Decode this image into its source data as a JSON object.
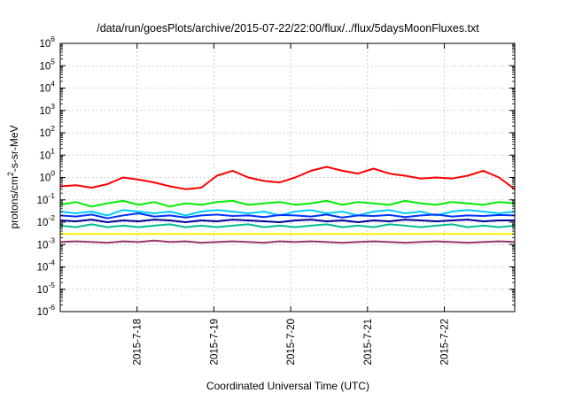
{
  "chart_data": {
    "type": "line",
    "title": "/data/run/goesPlots/archive/2015-07-22/22:00/flux/../flux/5daysMoonFluxes.txt",
    "xlabel": "Coordinated Universal Time (UTC)",
    "ylabel": {
      "base": "protons/cm",
      "sup": "2",
      "rest": "-s-sr-MeV"
    },
    "x_start": "2015-07-17 00:00",
    "x_end": "2015-07-22 22:00",
    "x_ticks": [
      "2015-7-18",
      "2015-7-19",
      "2015-7-20",
      "2015-7-21",
      "2015-7-22"
    ],
    "yscale": "log",
    "ylim": [
      1e-06,
      1000000.0
    ],
    "y_ticks": [
      {
        "base": "10",
        "exp": "-6"
      },
      {
        "base": "10",
        "exp": "-5"
      },
      {
        "base": "10",
        "exp": "-4"
      },
      {
        "base": "10",
        "exp": "-3"
      },
      {
        "base": "10",
        "exp": "-2"
      },
      {
        "base": "10",
        "exp": "-1"
      },
      {
        "base": "10",
        "exp": "0"
      },
      {
        "base": "10",
        "exp": "1"
      },
      {
        "base": "10",
        "exp": "2"
      },
      {
        "base": "10",
        "exp": "3"
      },
      {
        "base": "10",
        "exp": "4"
      },
      {
        "base": "10",
        "exp": "5"
      },
      {
        "base": "10",
        "exp": "6"
      }
    ],
    "grid": true,
    "legend": "none",
    "series": [
      {
        "color": "#ff0000",
        "values": [
          0.4,
          0.45,
          0.35,
          0.5,
          1.0,
          0.8,
          0.6,
          0.4,
          0.3,
          0.35,
          1.2,
          2.0,
          1.0,
          0.7,
          0.6,
          1.0,
          2.0,
          3.0,
          2.0,
          1.5,
          2.5,
          1.5,
          1.2,
          0.9,
          1.0,
          0.9,
          1.2,
          2.0,
          1.0,
          0.3
        ]
      },
      {
        "color": "#00ee00",
        "values": [
          0.06,
          0.08,
          0.05,
          0.07,
          0.09,
          0.06,
          0.08,
          0.05,
          0.07,
          0.06,
          0.08,
          0.09,
          0.06,
          0.07,
          0.08,
          0.06,
          0.07,
          0.09,
          0.06,
          0.08,
          0.07,
          0.06,
          0.09,
          0.07,
          0.06,
          0.08,
          0.07,
          0.06,
          0.08,
          0.07
        ]
      },
      {
        "color": "#00ccff",
        "values": [
          0.03,
          0.025,
          0.03,
          0.02,
          0.035,
          0.03,
          0.025,
          0.03,
          0.02,
          0.03,
          0.035,
          0.03,
          0.025,
          0.03,
          0.02,
          0.03,
          0.035,
          0.025,
          0.03,
          0.02,
          0.03,
          0.035,
          0.025,
          0.03,
          0.02,
          0.03,
          0.035,
          0.03,
          0.025,
          0.03
        ]
      },
      {
        "color": "#0033ff",
        "values": [
          0.02,
          0.018,
          0.022,
          0.015,
          0.02,
          0.025,
          0.018,
          0.02,
          0.016,
          0.02,
          0.022,
          0.019,
          0.02,
          0.017,
          0.021,
          0.02,
          0.018,
          0.022,
          0.016,
          0.02,
          0.019,
          0.021,
          0.017,
          0.02,
          0.022,
          0.018,
          0.02,
          0.019,
          0.021,
          0.02
        ]
      },
      {
        "color": "#000099",
        "values": [
          0.012,
          0.011,
          0.013,
          0.01,
          0.012,
          0.011,
          0.013,
          0.012,
          0.01,
          0.012,
          0.011,
          0.013,
          0.012,
          0.011,
          0.01,
          0.012,
          0.013,
          0.011,
          0.012,
          0.01,
          0.012,
          0.011,
          0.013,
          0.012,
          0.011,
          0.012,
          0.013,
          0.011,
          0.012,
          0.012
        ]
      },
      {
        "color": "#00bb99",
        "values": [
          0.007,
          0.006,
          0.008,
          0.006,
          0.007,
          0.006,
          0.007,
          0.008,
          0.006,
          0.007,
          0.006,
          0.007,
          0.008,
          0.006,
          0.007,
          0.006,
          0.007,
          0.008,
          0.006,
          0.007,
          0.006,
          0.008,
          0.007,
          0.006,
          0.007,
          0.008,
          0.006,
          0.007,
          0.006,
          0.007
        ]
      },
      {
        "color": "#ffee00",
        "values": [
          0.003,
          0.003,
          0.003,
          0.003,
          0.003,
          0.003,
          0.003,
          0.003,
          0.003,
          0.003,
          0.003,
          0.003,
          0.003,
          0.003,
          0.003,
          0.003,
          0.003,
          0.003,
          0.003,
          0.003,
          0.003,
          0.003,
          0.003,
          0.003,
          0.003,
          0.003,
          0.003,
          0.003,
          0.003,
          0.003
        ]
      },
      {
        "color": "#993366",
        "values": [
          0.0013,
          0.0014,
          0.0013,
          0.0012,
          0.0014,
          0.0013,
          0.0015,
          0.0013,
          0.0014,
          0.0012,
          0.0013,
          0.0014,
          0.0013,
          0.0012,
          0.0014,
          0.0013,
          0.0014,
          0.0013,
          0.0012,
          0.0013,
          0.0014,
          0.0013,
          0.0012,
          0.0013,
          0.0014,
          0.0013,
          0.0012,
          0.0013,
          0.0014,
          0.0013
        ]
      }
    ]
  }
}
